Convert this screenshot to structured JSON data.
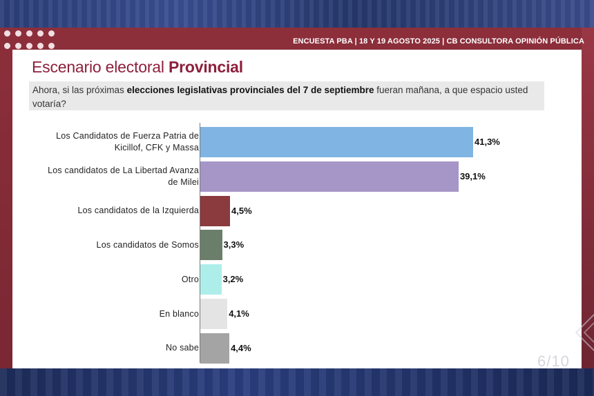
{
  "header": {
    "survey_info": "ENCUESTA PBA | 18 Y 19  AGOSTO 2025 | CB CONSULTORA OPINIÓN PÚBLICA"
  },
  "slide": {
    "title_light": "Escenario electoral ",
    "title_bold": "Provincial",
    "question_pre": "Ahora, si las próximas ",
    "question_bold": "elecciones legislativas provinciales del 7 de septiembre",
    "question_post": " fueran mañana, a que espacio usted votaría?"
  },
  "page_indicator": "6/10",
  "chart_data": {
    "type": "bar",
    "orientation": "horizontal",
    "categories": [
      "Los Candidatos de Fuerza Patria de Kicillof, CFK y Massa",
      "Los candidatos de La Libertad Avanza de Milei",
      "Los candidatos de la Izquierda",
      "Los candidatos de Somos",
      "Otro",
      "En blanco",
      "No sabe"
    ],
    "values": [
      41.3,
      39.1,
      4.5,
      3.3,
      3.2,
      4.1,
      4.4
    ],
    "value_labels": [
      "41,3%",
      "39,1%",
      "4,5%",
      "3,3%",
      "3,2%",
      "4,1%",
      "4,4%"
    ],
    "colors": [
      "#80b4e2",
      "#a696c8",
      "#8b3a3e",
      "#6b7e6a",
      "#aeeeea",
      "#e4e4e4",
      "#a4a4a4"
    ],
    "unit": "%",
    "grid": false,
    "legend": "none"
  }
}
